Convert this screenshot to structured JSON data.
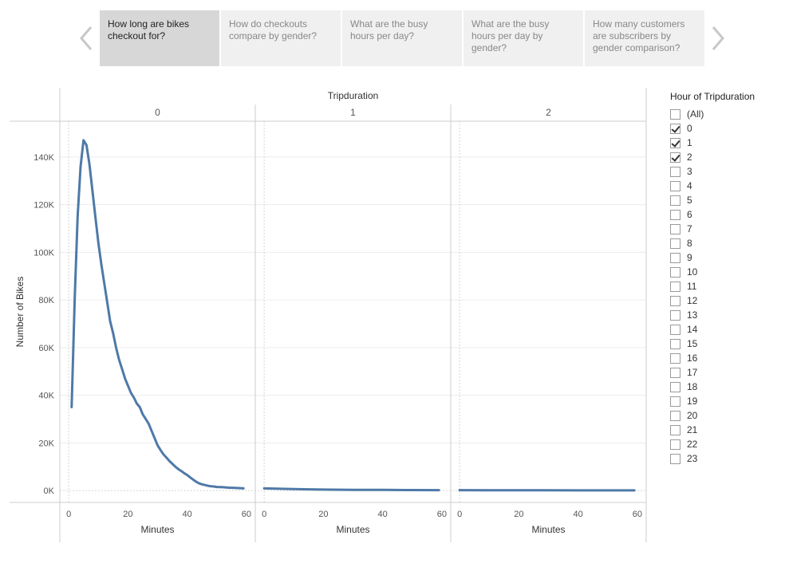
{
  "story": {
    "tabs": [
      {
        "label": "How long are bikes checkout for?",
        "active": true
      },
      {
        "label": "How do checkouts compare by gender?",
        "active": false
      },
      {
        "label": "What are the busy hours per day?",
        "active": false
      },
      {
        "label": "What are the busy hours per day by gender?",
        "active": false
      },
      {
        "label": "How many customers are subscribers by gender comparison?",
        "active": false
      }
    ],
    "prev_icon": "chevron-left-icon",
    "next_icon": "chevron-right-icon"
  },
  "colors": {
    "line": "#4e79a7",
    "axis": "#cccccc",
    "grid": "#ececec",
    "arrow": "#c8c8c8"
  },
  "chart_data": {
    "type": "line",
    "title": "Tripduration",
    "ylabel": "Number of Bikes",
    "xlabel": "Minutes",
    "ylim": [
      -5000,
      155000
    ],
    "yticks": [
      0,
      20000,
      40000,
      60000,
      80000,
      100000,
      120000,
      140000
    ],
    "ytick_labels": [
      "0K",
      "20K",
      "40K",
      "60K",
      "80K",
      "100K",
      "120K",
      "140K"
    ],
    "xlim": [
      -3,
      63
    ],
    "xticks": [
      0,
      20,
      40,
      60
    ],
    "xtick_labels": [
      "0",
      "20",
      "40",
      "60"
    ],
    "panels": [
      {
        "label": "0",
        "x": [
          1,
          2,
          3,
          4,
          5,
          6,
          7,
          8,
          9,
          10,
          11,
          12,
          13,
          14,
          15,
          16,
          17,
          18,
          19,
          20,
          21,
          22,
          23,
          24,
          25,
          26,
          27,
          28,
          29,
          30,
          31,
          32,
          33,
          34,
          35,
          36,
          37,
          38,
          39,
          40,
          41,
          42,
          43,
          44,
          45,
          46,
          47,
          48,
          49,
          50,
          52,
          54,
          56,
          58,
          59
        ],
        "values": [
          35000,
          80000,
          115000,
          136000,
          147000,
          145000,
          137000,
          126000,
          115000,
          104000,
          95000,
          87000,
          79000,
          71000,
          66000,
          60000,
          55000,
          51000,
          47000,
          44000,
          41000,
          39000,
          36500,
          35000,
          32000,
          30000,
          28000,
          25000,
          22000,
          19000,
          17000,
          15200,
          13800,
          12400,
          11200,
          10000,
          9000,
          8200,
          7300,
          6500,
          5500,
          4600,
          3700,
          3000,
          2600,
          2300,
          2000,
          1800,
          1700,
          1500,
          1400,
          1200,
          1100,
          1000,
          900
        ]
      },
      {
        "label": "1",
        "x": [
          0,
          10,
          20,
          30,
          40,
          50,
          59
        ],
        "values": [
          900,
          600,
          400,
          300,
          250,
          200,
          150
        ]
      },
      {
        "label": "2",
        "x": [
          0,
          10,
          20,
          30,
          40,
          50,
          59
        ],
        "values": [
          150,
          120,
          100,
          80,
          60,
          50,
          40
        ]
      }
    ]
  },
  "legend": {
    "title": "Hour of Tripduration",
    "items": [
      {
        "label": "(All)",
        "checked": false
      },
      {
        "label": "0",
        "checked": true
      },
      {
        "label": "1",
        "checked": true
      },
      {
        "label": "2",
        "checked": true
      },
      {
        "label": "3",
        "checked": false
      },
      {
        "label": "4",
        "checked": false
      },
      {
        "label": "5",
        "checked": false
      },
      {
        "label": "6",
        "checked": false
      },
      {
        "label": "7",
        "checked": false
      },
      {
        "label": "8",
        "checked": false
      },
      {
        "label": "9",
        "checked": false
      },
      {
        "label": "10",
        "checked": false
      },
      {
        "label": "11",
        "checked": false
      },
      {
        "label": "12",
        "checked": false
      },
      {
        "label": "13",
        "checked": false
      },
      {
        "label": "14",
        "checked": false
      },
      {
        "label": "15",
        "checked": false
      },
      {
        "label": "16",
        "checked": false
      },
      {
        "label": "17",
        "checked": false
      },
      {
        "label": "18",
        "checked": false
      },
      {
        "label": "19",
        "checked": false
      },
      {
        "label": "20",
        "checked": false
      },
      {
        "label": "21",
        "checked": false
      },
      {
        "label": "22",
        "checked": false
      },
      {
        "label": "23",
        "checked": false
      }
    ]
  }
}
